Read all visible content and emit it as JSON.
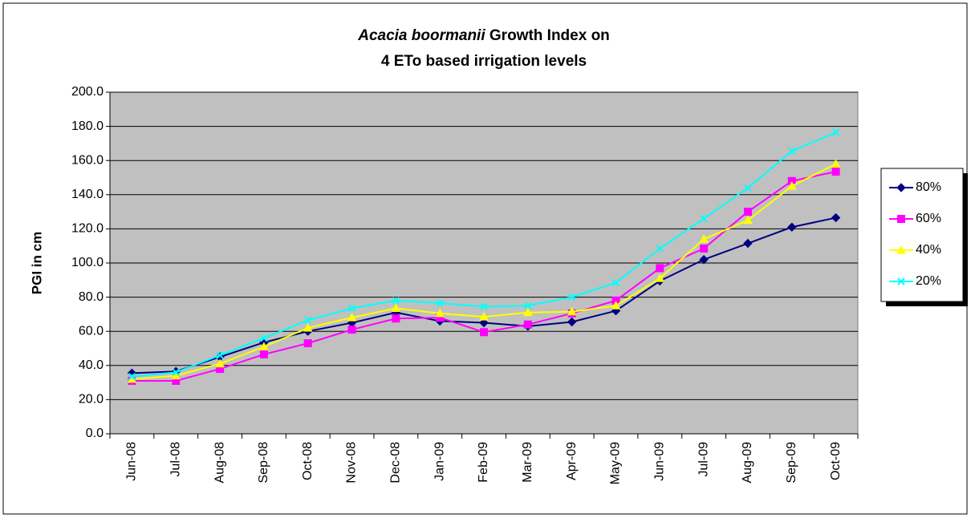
{
  "chart_data": {
    "type": "line",
    "title": {
      "species": "Acacia boormanii",
      "line1": "Growth Index on",
      "line2": "4 ETo based irrigation levels"
    },
    "y_label": "PGI in cm",
    "categories": [
      "Jun-08",
      "Jul-08",
      "Aug-08",
      "Sep-08",
      "Oct-08",
      "Nov-08",
      "Dec-08",
      "Jan-09",
      "Feb-09",
      "Mar-09",
      "Apr-09",
      "May-09",
      "Jun-09",
      "Jul-09",
      "Aug-09",
      "Sep-09",
      "Oct-09"
    ],
    "series": [
      {
        "name": "80%",
        "color": "#000080",
        "marker": "diamond",
        "values": [
          35.5,
          36.5,
          45,
          53.5,
          60,
          65,
          71,
          66,
          65,
          63,
          65.5,
          72,
          89.5,
          102,
          111.5,
          121,
          126.5
        ]
      },
      {
        "name": "60%",
        "color": "#ff00ff",
        "marker": "square",
        "values": [
          31,
          31,
          38,
          46.5,
          53,
          61,
          67.5,
          68,
          59.5,
          64,
          70.5,
          78,
          97,
          108.5,
          130,
          148,
          153.5
        ]
      },
      {
        "name": "40%",
        "color": "#ffff00",
        "marker": "triangle",
        "values": [
          32,
          34,
          41,
          51,
          62,
          68,
          73.5,
          70.5,
          68.5,
          71,
          71.5,
          75,
          91,
          114,
          125,
          145,
          158
        ]
      },
      {
        "name": "20%",
        "color": "#00ffff",
        "marker": "x",
        "values": [
          33.5,
          36,
          46,
          56,
          66.5,
          73.5,
          78,
          76.5,
          74.5,
          75,
          80,
          88.5,
          108.5,
          126,
          144,
          165.5,
          176.5
        ]
      }
    ],
    "ylim": [
      0,
      200
    ],
    "yticks": [
      {
        "value": 0,
        "label": "0.0"
      },
      {
        "value": 20,
        "label": "20.0"
      },
      {
        "value": 40,
        "label": "40.0"
      },
      {
        "value": 60,
        "label": "60.0"
      },
      {
        "value": 80,
        "label": "80.0"
      },
      {
        "value": 100,
        "label": "100.0"
      },
      {
        "value": 120,
        "label": "120.0"
      },
      {
        "value": 140,
        "label": "140.0"
      },
      {
        "value": 160,
        "label": "160.0"
      },
      {
        "value": 180,
        "label": "180.0"
      },
      {
        "value": 200,
        "label": "200.0"
      }
    ],
    "grid": true,
    "legend": "right"
  }
}
